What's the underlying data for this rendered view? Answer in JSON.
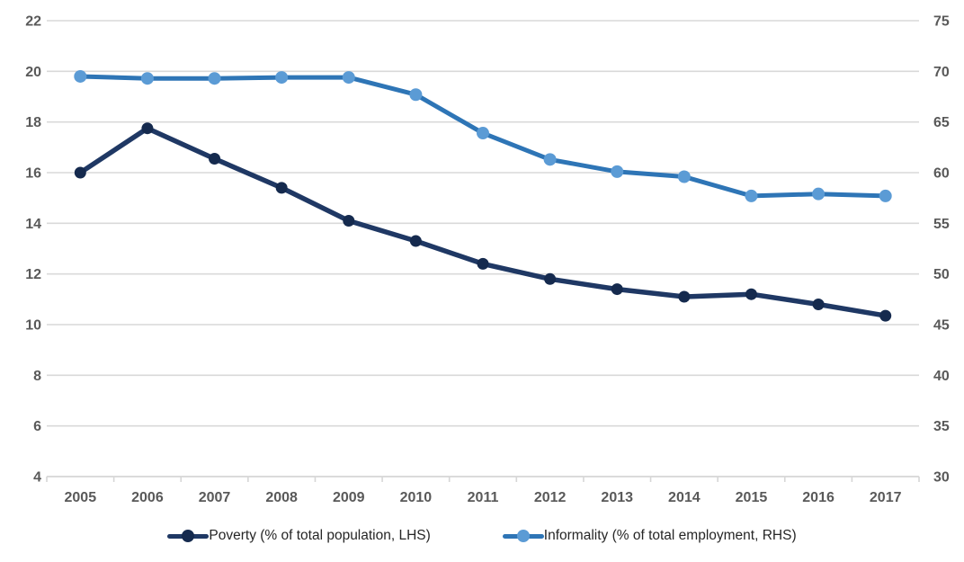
{
  "chart_data": {
    "type": "line",
    "title": "",
    "x_labels": [
      "2005",
      "2006",
      "2007",
      "2008",
      "2009",
      "2010",
      "2011",
      "2012",
      "2013",
      "2014",
      "2015",
      "2016",
      "2017"
    ],
    "series": [
      {
        "key": "poverty",
        "name": "Poverty (% of total population, LHS)",
        "axis": "left",
        "values": [
          16.0,
          17.75,
          16.55,
          15.4,
          14.1,
          13.3,
          12.4,
          11.8,
          11.4,
          11.1,
          11.2,
          10.8,
          10.35
        ],
        "line_color": "#1f3864",
        "marker_color": "#152a4e",
        "line_width": 5.5,
        "marker_radius": 6.5
      },
      {
        "key": "informality",
        "name": "Informality (% of total employment, RHS)",
        "axis": "right",
        "values": [
          69.5,
          69.3,
          69.3,
          69.4,
          69.4,
          67.7,
          63.9,
          61.3,
          60.1,
          59.6,
          57.7,
          57.9,
          57.7
        ],
        "line_color": "#2e75b6",
        "marker_color": "#5b9bd5",
        "line_width": 5,
        "marker_radius": 7
      }
    ],
    "left_axis": {
      "min": 4,
      "max": 22,
      "step": 2,
      "tick_labels": [
        "22",
        "20",
        "18",
        "16",
        "14",
        "12",
        "10",
        "8",
        "6",
        "4"
      ]
    },
    "right_axis": {
      "min": 30,
      "max": 75,
      "step": 5,
      "tick_labels": [
        "75",
        "70",
        "65",
        "60",
        "55",
        "50",
        "45",
        "40",
        "35",
        "30"
      ]
    },
    "grid": true,
    "legend_position": "bottom",
    "styles": {
      "gridline_color": "#d9d9d9",
      "axis_color": "#d6d6d6",
      "axis_label_color": "#595959",
      "legend_text_color": "#262626",
      "background": "#ffffff"
    }
  }
}
